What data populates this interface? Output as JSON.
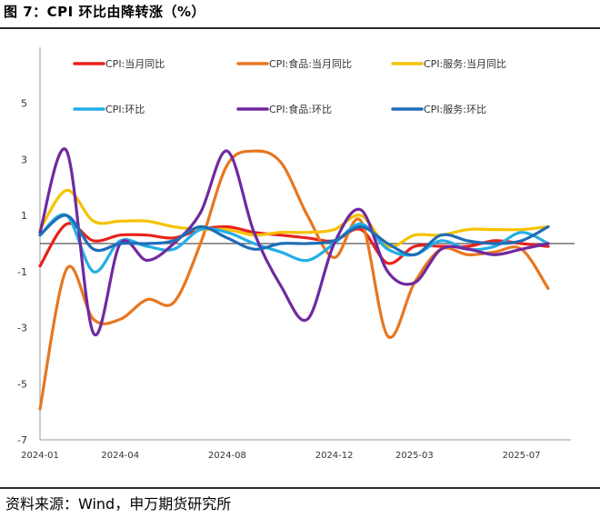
{
  "header": {
    "title": "图 7：CPI 环比由降转涨（%）"
  },
  "footer": {
    "source": "资料来源：Wind，申万期货研究所"
  },
  "colors": {
    "axis": "#9a9a9a",
    "zero_line": "#555555"
  },
  "chart_data": {
    "type": "line",
    "title": "",
    "xlabel": "",
    "ylabel": "",
    "ylim": [
      -7,
      7
    ],
    "yticks": [
      5,
      3,
      1,
      -1,
      -3,
      -5,
      -7
    ],
    "grid": false,
    "legend_position": "top",
    "x": [
      "2024-01",
      "2024-02",
      "2024-03",
      "2024-04",
      "2024-05",
      "2024-06",
      "2024-07",
      "2024-08",
      "2024-09",
      "2024-10",
      "2024-11",
      "2024-12",
      "2025-01",
      "2025-02",
      "2025-03",
      "2025-04",
      "2025-05",
      "2025-06",
      "2025-07",
      "2025-08"
    ],
    "xtick_labels": [
      "2024-01",
      "2024-04",
      "2024-08",
      "2024-12",
      "2025-03",
      "2025-07"
    ],
    "series": [
      {
        "name": "CPI:当月同比",
        "color": "#e8221c",
        "values": [
          -0.8,
          0.7,
          0.1,
          0.3,
          0.3,
          0.2,
          0.5,
          0.6,
          0.4,
          0.3,
          0.2,
          0.1,
          0.5,
          -0.7,
          -0.1,
          -0.1,
          -0.1,
          0.1,
          0.0,
          -0.1
        ]
      },
      {
        "name": "CPI:食品:当月同比",
        "color": "#e8761e",
        "values": [
          -5.9,
          -0.9,
          -2.7,
          -2.7,
          -2.0,
          -2.1,
          0.0,
          2.8,
          3.3,
          2.9,
          1.0,
          -0.5,
          0.8,
          -3.3,
          -1.4,
          -0.2,
          -0.4,
          -0.3,
          -0.2,
          -1.6
        ]
      },
      {
        "name": "CPI:服务:当月同比",
        "color": "#f5c200",
        "values": [
          0.5,
          1.9,
          0.8,
          0.8,
          0.8,
          0.6,
          0.5,
          0.5,
          0.3,
          0.4,
          0.4,
          0.5,
          1.0,
          -0.1,
          0.3,
          0.3,
          0.5,
          0.5,
          0.5,
          0.6
        ]
      },
      {
        "name": "CPI:环比",
        "color": "#23aee6",
        "values": [
          0.3,
          1.0,
          -1.0,
          0.1,
          -0.1,
          -0.2,
          0.5,
          0.4,
          0.0,
          -0.3,
          -0.6,
          0.0,
          0.7,
          -0.2,
          -0.4,
          0.1,
          -0.2,
          -0.1,
          0.4,
          0.0
        ]
      },
      {
        "name": "CPI:食品:环比",
        "color": "#7029a0",
        "values": [
          0.4,
          3.3,
          -3.2,
          0.0,
          -0.6,
          0.0,
          1.1,
          3.3,
          0.4,
          -1.5,
          -2.7,
          0.0,
          1.2,
          -1.0,
          -1.4,
          -0.2,
          -0.2,
          -0.4,
          -0.2,
          0.0
        ]
      },
      {
        "name": "CPI:服务:环比",
        "color": "#1f6db8",
        "values": [
          0.3,
          1.0,
          -0.2,
          0.0,
          0.0,
          0.1,
          0.6,
          0.2,
          -0.2,
          0.0,
          0.0,
          0.1,
          0.6,
          0.0,
          -0.4,
          0.3,
          0.1,
          0.0,
          0.1,
          0.6
        ]
      }
    ]
  }
}
